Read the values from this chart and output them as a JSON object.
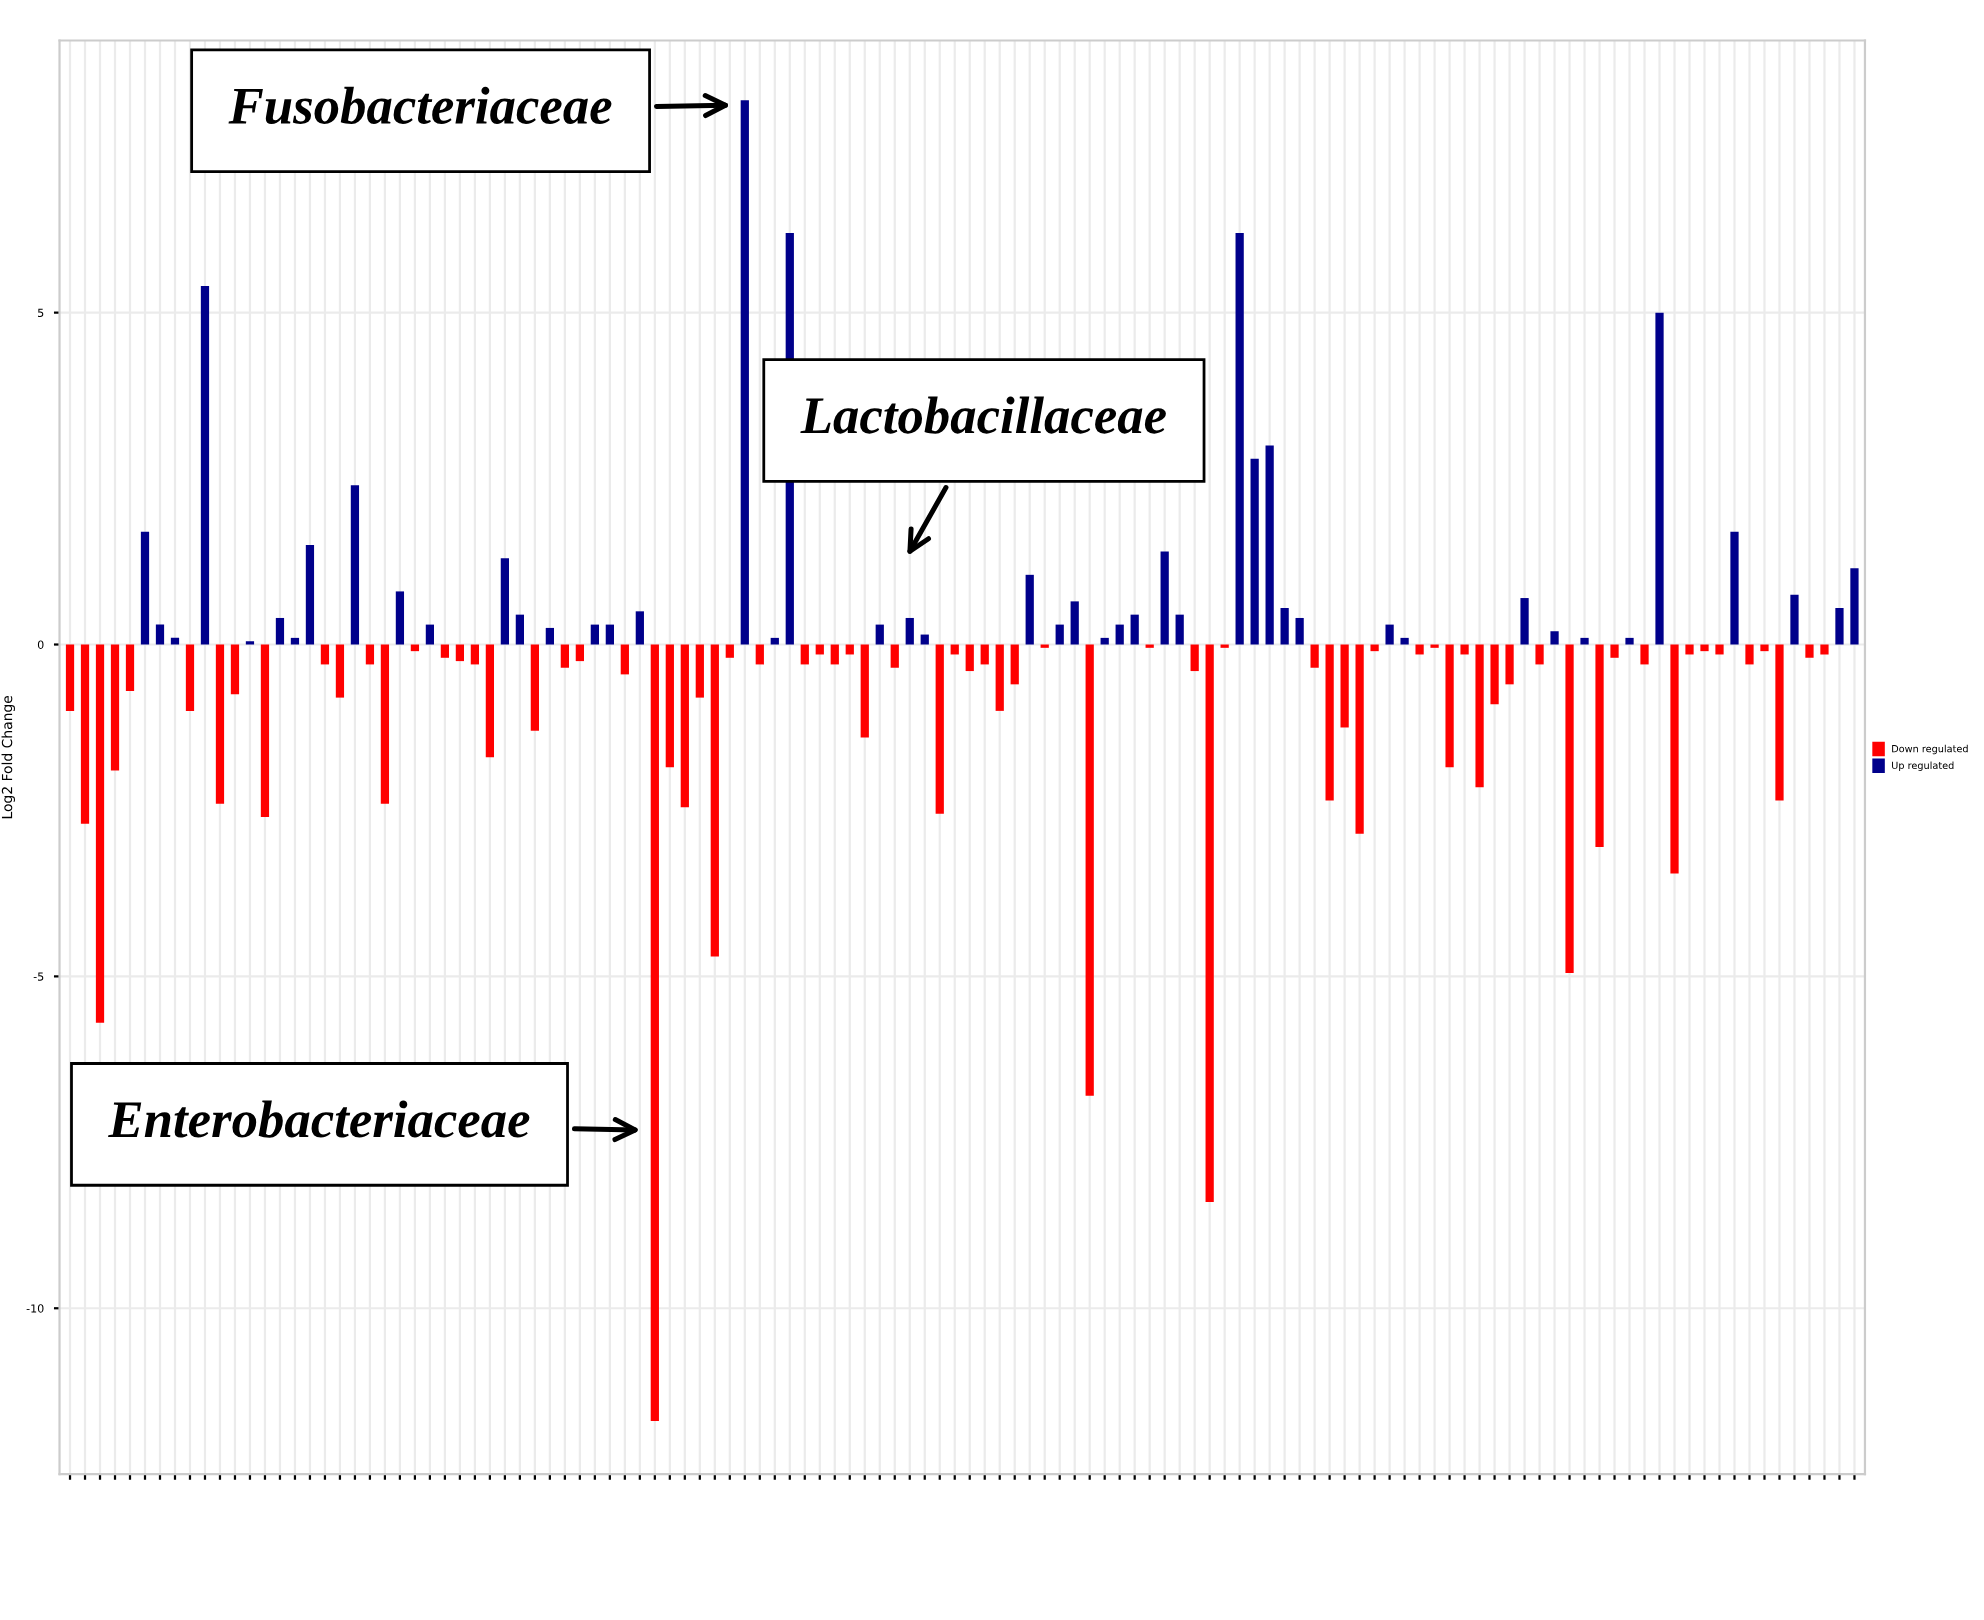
{
  "chart_data": {
    "type": "bar",
    "ylabel": "Log2 Fold Change",
    "categories": [
      null,
      null,
      null,
      null,
      null,
      null,
      null,
      null,
      null,
      null,
      null,
      null,
      null,
      null,
      null,
      null,
      null,
      null,
      null,
      null,
      null,
      null,
      null,
      null,
      null,
      null,
      null,
      null,
      null,
      null,
      null,
      null,
      null,
      null,
      null,
      null,
      null,
      null,
      null,
      null,
      null,
      null,
      null,
      null,
      null,
      null,
      null,
      null,
      null,
      null,
      null,
      null,
      null,
      null,
      null,
      null,
      null,
      null,
      null,
      null,
      null,
      null,
      null,
      null,
      null,
      null,
      null,
      null,
      null,
      null,
      null,
      null,
      null,
      null,
      null,
      null,
      null,
      null,
      null,
      null,
      null,
      null,
      null,
      null,
      null,
      null,
      null,
      null,
      null,
      null,
      null,
      null,
      null,
      null,
      null,
      null,
      null,
      null,
      null,
      null,
      null,
      null,
      null,
      null,
      null,
      null,
      null,
      null,
      null,
      null,
      null,
      null,
      null,
      null,
      null,
      null,
      null,
      null,
      null,
      null
    ],
    "series": [
      {
        "name": "Down regulated",
        "color": "#ff0000",
        "values": [
          -1.0,
          -2.7,
          -5.7,
          -1.9,
          -0.7,
          null,
          null,
          null,
          -1.0,
          null,
          -2.4,
          -0.75,
          null,
          -2.6,
          null,
          null,
          null,
          -0.3,
          -0.8,
          null,
          -0.3,
          -2.4,
          null,
          -0.1,
          null,
          -0.2,
          -0.25,
          -0.3,
          -1.7,
          null,
          null,
          -1.3,
          null,
          -0.35,
          -0.25,
          null,
          null,
          -0.45,
          null,
          -11.7,
          -1.85,
          -2.45,
          -0.8,
          -4.7,
          -0.2,
          null,
          -0.3,
          null,
          null,
          -0.3,
          -0.15,
          -0.3,
          -0.15,
          -1.4,
          null,
          -0.35,
          null,
          null,
          -2.55,
          -0.15,
          -0.4,
          -0.3,
          -1.0,
          -0.6,
          null,
          -0.05,
          null,
          null,
          -6.8,
          null,
          null,
          null,
          -0.05,
          null,
          null,
          -0.4,
          -8.4,
          -0.05,
          null,
          null,
          null,
          null,
          null,
          -0.35,
          -2.35,
          -1.25,
          -2.85,
          -0.1,
          null,
          null,
          -0.15,
          -0.05,
          -1.85,
          -0.15,
          -2.15,
          -0.9,
          -0.6,
          null,
          -0.3,
          null,
          -4.95,
          null,
          -3.05,
          -0.2,
          null,
          -0.3,
          null,
          -3.45,
          -0.15,
          -0.1,
          -0.15,
          null,
          -0.3,
          -0.1,
          -2.35,
          null,
          -0.2,
          -0.15,
          null,
          null
        ]
      },
      {
        "name": "Up regulated",
        "color": "#00008b",
        "values": [
          null,
          null,
          null,
          null,
          null,
          1.7,
          0.3,
          0.1,
          null,
          5.4,
          null,
          null,
          0.05,
          null,
          0.4,
          0.1,
          1.5,
          null,
          null,
          2.4,
          null,
          null,
          0.8,
          null,
          0.3,
          null,
          null,
          null,
          null,
          1.3,
          0.45,
          null,
          0.25,
          null,
          null,
          0.3,
          0.3,
          null,
          0.5,
          null,
          null,
          null,
          null,
          null,
          null,
          8.2,
          null,
          0.1,
          6.2,
          null,
          null,
          null,
          null,
          null,
          0.3,
          null,
          0.4,
          0.15,
          null,
          null,
          null,
          null,
          null,
          null,
          1.05,
          null,
          0.3,
          0.65,
          null,
          0.1,
          0.3,
          0.45,
          null,
          1.4,
          0.45,
          null,
          null,
          null,
          6.2,
          2.8,
          3.0,
          0.55,
          0.4,
          null,
          null,
          null,
          null,
          null,
          0.3,
          0.1,
          null,
          null,
          null,
          null,
          null,
          null,
          null,
          0.7,
          null,
          0.2,
          null,
          0.1,
          null,
          null,
          0.1,
          null,
          5.0,
          null,
          null,
          null,
          null,
          1.7,
          null,
          null,
          null,
          0.75,
          null,
          null,
          0.55,
          1.15
        ]
      }
    ],
    "ylim": [
      -12.5,
      9.1
    ],
    "yticks": [
      -10,
      -5,
      0,
      5
    ],
    "grid": true,
    "legend": "right",
    "tick_labels": "y",
    "annotations": [
      "Fusobacteriaceae",
      "Lactobacillaceae",
      "Enterobacteriaceae"
    ]
  }
}
